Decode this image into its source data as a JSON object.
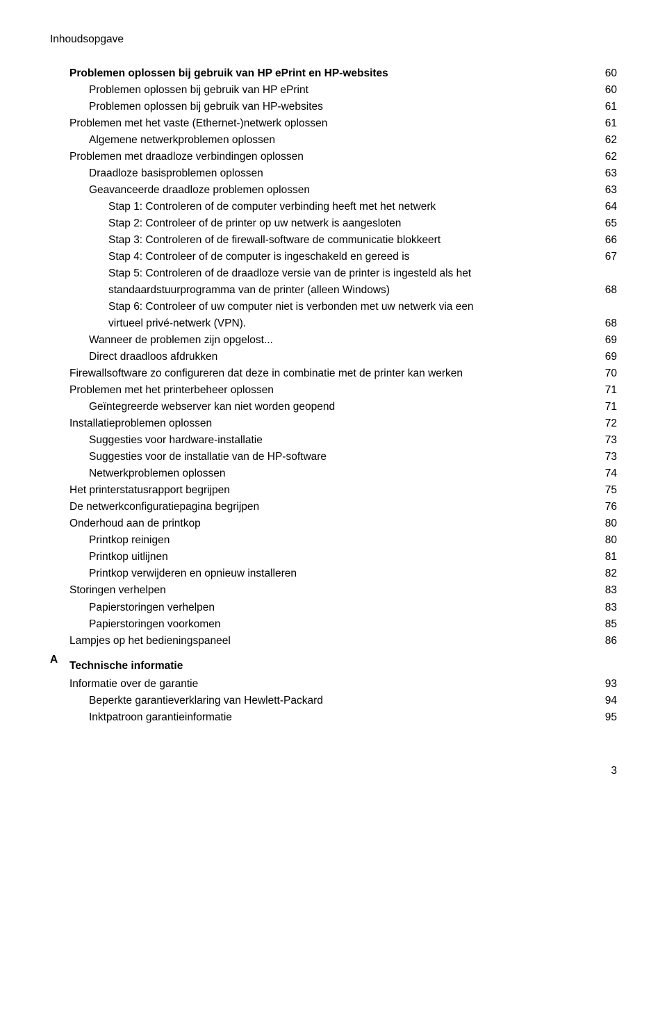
{
  "header": "Inhoudsopgave",
  "items": [
    {
      "indent": 1,
      "label": "Problemen oplossen bij gebruik van HP ePrint en HP-websites",
      "page": "60",
      "bold": true
    },
    {
      "indent": 2,
      "label": "Problemen oplossen bij gebruik van HP ePrint",
      "page": "60"
    },
    {
      "indent": 2,
      "label": "Problemen oplossen bij gebruik van HP-websites",
      "page": "61"
    },
    {
      "indent": 1,
      "label": "Problemen met het vaste (Ethernet-)netwerk oplossen",
      "page": "61"
    },
    {
      "indent": 2,
      "label": "Algemene netwerkproblemen oplossen",
      "page": "62"
    },
    {
      "indent": 1,
      "label": "Problemen met draadloze verbindingen oplossen",
      "page": "62"
    },
    {
      "indent": 2,
      "label": "Draadloze basisproblemen oplossen",
      "page": "63"
    },
    {
      "indent": 2,
      "label": "Geavanceerde draadloze problemen oplossen",
      "page": "63"
    },
    {
      "indent": 3,
      "label": "Stap 1: Controleren of de computer verbinding heeft met het netwerk",
      "page": "64"
    },
    {
      "indent": 3,
      "label": "Stap 2: Controleer of de printer op uw netwerk is aangesloten",
      "page": "65"
    },
    {
      "indent": 3,
      "label": "Stap 3: Controleren of de firewall-software de communicatie blokkeert",
      "page": "66"
    },
    {
      "indent": 3,
      "label": "Stap 4: Controleer of de computer is ingeschakeld en gereed is",
      "page": "67"
    },
    {
      "indent": 3,
      "label": "Stap 5: Controleren of de draadloze versie van de printer is ingesteld als het",
      "wrap": true
    },
    {
      "indent": 3,
      "label": "standaardstuurprogramma van de printer (alleen Windows)",
      "page": "68",
      "cont": true
    },
    {
      "indent": 3,
      "label": "Stap 6: Controleer of uw computer niet is verbonden met uw netwerk via een",
      "wrap": true
    },
    {
      "indent": 3,
      "label": "virtueel privé-netwerk (VPN).",
      "page": "68",
      "cont": true
    },
    {
      "indent": 2,
      "label": "Wanneer de problemen zijn opgelost...",
      "page": "69"
    },
    {
      "indent": 2,
      "label": "Direct draadloos afdrukken",
      "page": "69"
    },
    {
      "indent": 1,
      "label": "Firewallsoftware zo configureren dat deze in combinatie met de printer kan werken",
      "page": "70"
    },
    {
      "indent": 1,
      "label": "Problemen met het printerbeheer oplossen",
      "page": "71"
    },
    {
      "indent": 2,
      "label": "Geïntegreerde webserver kan niet worden geopend",
      "page": "71"
    },
    {
      "indent": 1,
      "label": "Installatieproblemen oplossen",
      "page": "72"
    },
    {
      "indent": 2,
      "label": "Suggesties voor hardware-installatie",
      "page": "73"
    },
    {
      "indent": 2,
      "label": "Suggesties voor de installatie van de HP-software",
      "page": "73"
    },
    {
      "indent": 2,
      "label": "Netwerkproblemen oplossen",
      "page": "74"
    },
    {
      "indent": 1,
      "label": "Het printerstatusrapport begrijpen",
      "page": "75"
    },
    {
      "indent": 1,
      "label": "De netwerkconfiguratiepagina begrijpen",
      "page": "76"
    },
    {
      "indent": 1,
      "label": "Onderhoud aan de printkop",
      "page": "80"
    },
    {
      "indent": 2,
      "label": "Printkop reinigen",
      "page": "80"
    },
    {
      "indent": 2,
      "label": "Printkop uitlijnen",
      "page": "81"
    },
    {
      "indent": 2,
      "label": "Printkop verwijderen en opnieuw installeren",
      "page": "82"
    },
    {
      "indent": 1,
      "label": "Storingen verhelpen",
      "page": "83"
    },
    {
      "indent": 2,
      "label": "Papierstoringen verhelpen",
      "page": "83"
    },
    {
      "indent": 2,
      "label": "Papierstoringen voorkomen",
      "page": "85"
    },
    {
      "indent": 1,
      "label": "Lampjes op het bedieningspaneel",
      "page": "86"
    }
  ],
  "appendix": {
    "letter": "A",
    "title": "Technische informatie",
    "items": [
      {
        "indent": 1,
        "label": "Informatie over de garantie",
        "page": "93"
      },
      {
        "indent": 2,
        "label": "Beperkte garantieverklaring van Hewlett-Packard",
        "page": "94"
      },
      {
        "indent": 2,
        "label": "Inktpatroon garantieinformatie",
        "page": "95"
      }
    ]
  },
  "footer": "3"
}
